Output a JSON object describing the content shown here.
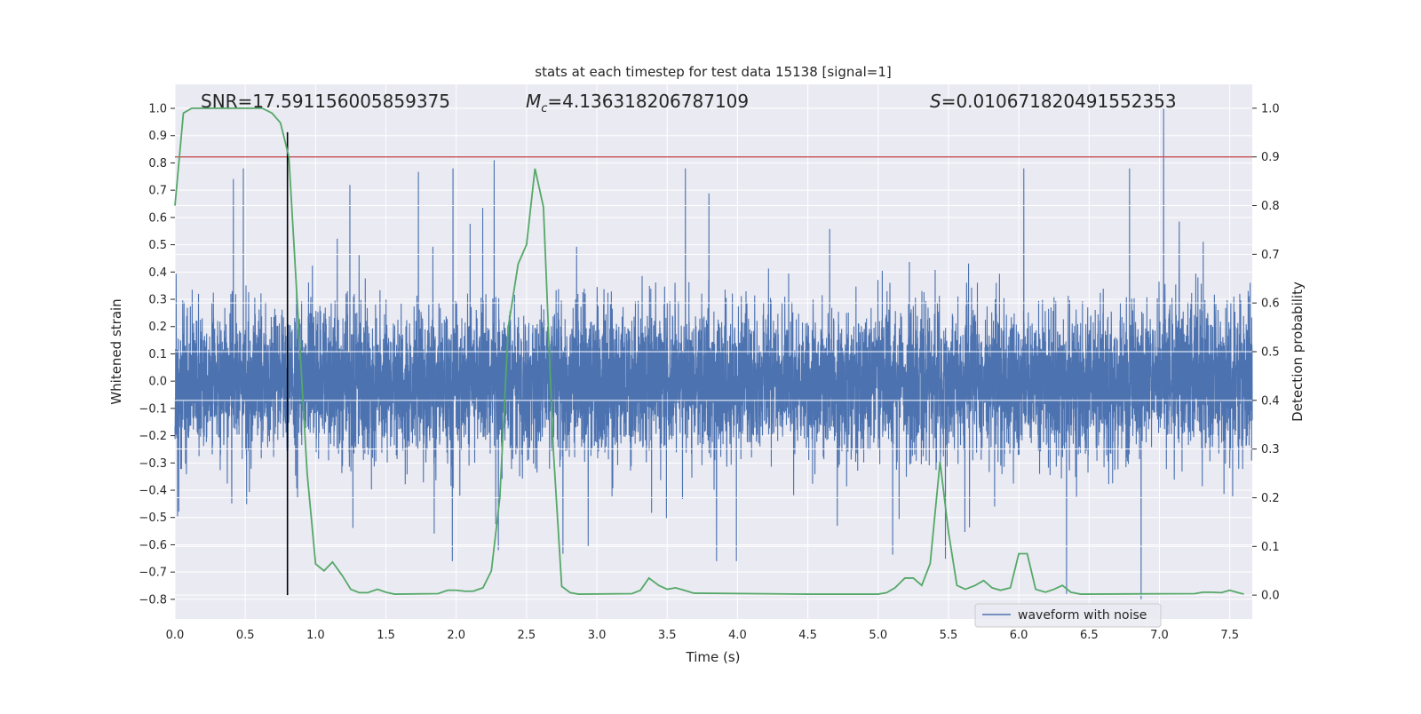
{
  "chart_data": {
    "type": "line",
    "title": "stats at each timestep for test data 15138 [signal=1]",
    "xlabel": "Time (s)",
    "ylabel_left": "Whitened strain",
    "ylabel_right": "Detection probability",
    "xlim": [
      0,
      7.66
    ],
    "ylim_left": [
      -0.872,
      1.088
    ],
    "ylim_right": [
      -0.049,
      1.049
    ],
    "x_ticks": [
      0.0,
      0.5,
      1.0,
      1.5,
      2.0,
      2.5,
      3.0,
      3.5,
      4.0,
      4.5,
      5.0,
      5.5,
      6.0,
      6.5,
      7.0,
      7.5
    ],
    "x_tick_labels": [
      "0.0",
      "0.5",
      "1.0",
      "1.5",
      "2.0",
      "2.5",
      "3.0",
      "3.5",
      "4.0",
      "4.5",
      "5.0",
      "5.5",
      "6.0",
      "6.5",
      "7.0",
      "7.5"
    ],
    "y_left_ticks": [
      1.0,
      0.9,
      0.8,
      0.7,
      0.6,
      0.5,
      0.4,
      0.3,
      0.2,
      0.1,
      0.0,
      -0.1,
      -0.2,
      -0.3,
      -0.4,
      -0.5,
      -0.6,
      -0.7,
      -0.8
    ],
    "y_left_tick_labels": [
      "1.0",
      "0.9",
      "0.8",
      "0.7",
      "0.6",
      "0.5",
      "0.4",
      "0.3",
      "0.2",
      "0.1",
      "0.0",
      "−0.1",
      "−0.2",
      "−0.3",
      "−0.4",
      "−0.5",
      "−0.6",
      "−0.7",
      "−0.8"
    ],
    "y_right_ticks": [
      1.0,
      0.9,
      0.8,
      0.7,
      0.6,
      0.5,
      0.4,
      0.3,
      0.2,
      0.1,
      0.0
    ],
    "y_right_tick_labels": [
      "1.0",
      "0.9",
      "0.8",
      "0.7",
      "0.6",
      "0.5",
      "0.4",
      "0.3",
      "0.2",
      "0.1",
      "0.0"
    ],
    "grid": true,
    "annotations": {
      "snr": "SNR=17.591156005859375",
      "mc_symbol": "M",
      "mc_sub": "c",
      "mc_value": "=4.136318206787109",
      "s_symbol": "S",
      "s_value": "=0.010671820491552353"
    },
    "legend": {
      "placement": "lower-right",
      "entries": [
        "waveform with noise"
      ]
    },
    "threshold": {
      "axis": "right",
      "value": 0.9,
      "color": "#c44e52"
    },
    "marker_time": {
      "value": 0.8,
      "color": "#000000"
    },
    "waveform": {
      "name": "waveform with noise",
      "color": "#4c72b0",
      "t_end": 7.66,
      "n_samples": 8192,
      "noise_std": 0.13,
      "spikes": [
        [
          2.27,
          0.81
        ],
        [
          7.03,
          1.0
        ],
        [
          6.87,
          -0.8
        ],
        [
          6.34,
          -0.78
        ],
        [
          0.8,
          -0.6
        ],
        [
          2.3,
          -0.62
        ]
      ]
    },
    "probability": {
      "color": "#55a868",
      "points": [
        [
          0.0,
          0.8
        ],
        [
          0.06,
          0.99
        ],
        [
          0.12,
          1.0
        ],
        [
          0.25,
          1.0
        ],
        [
          0.5,
          1.0
        ],
        [
          0.62,
          1.0
        ],
        [
          0.69,
          0.99
        ],
        [
          0.75,
          0.97
        ],
        [
          0.81,
          0.9
        ],
        [
          0.87,
          0.6
        ],
        [
          0.94,
          0.25
        ],
        [
          1.0,
          0.064
        ],
        [
          1.06,
          0.05
        ],
        [
          1.12,
          0.068
        ],
        [
          1.19,
          0.04
        ],
        [
          1.25,
          0.012
        ],
        [
          1.31,
          0.005
        ],
        [
          1.37,
          0.005
        ],
        [
          1.44,
          0.012
        ],
        [
          1.5,
          0.006
        ],
        [
          1.56,
          0.002
        ],
        [
          1.87,
          0.003
        ],
        [
          1.94,
          0.01
        ],
        [
          2.0,
          0.01
        ],
        [
          2.06,
          0.008
        ],
        [
          2.12,
          0.008
        ],
        [
          2.19,
          0.015
        ],
        [
          2.25,
          0.05
        ],
        [
          2.31,
          0.2
        ],
        [
          2.37,
          0.55
        ],
        [
          2.44,
          0.68
        ],
        [
          2.5,
          0.72
        ],
        [
          2.56,
          0.876
        ],
        [
          2.62,
          0.797
        ],
        [
          2.69,
          0.3
        ],
        [
          2.75,
          0.018
        ],
        [
          2.81,
          0.005
        ],
        [
          2.87,
          0.002
        ],
        [
          3.25,
          0.003
        ],
        [
          3.31,
          0.01
        ],
        [
          3.37,
          0.035
        ],
        [
          3.44,
          0.02
        ],
        [
          3.5,
          0.012
        ],
        [
          3.56,
          0.015
        ],
        [
          3.62,
          0.01
        ],
        [
          3.69,
          0.004
        ],
        [
          4.5,
          0.002
        ],
        [
          5.0,
          0.002
        ],
        [
          5.06,
          0.005
        ],
        [
          5.12,
          0.015
        ],
        [
          5.19,
          0.035
        ],
        [
          5.25,
          0.035
        ],
        [
          5.31,
          0.02
        ],
        [
          5.37,
          0.065
        ],
        [
          5.44,
          0.274
        ],
        [
          5.5,
          0.13
        ],
        [
          5.56,
          0.02
        ],
        [
          5.62,
          0.012
        ],
        [
          5.69,
          0.02
        ],
        [
          5.75,
          0.03
        ],
        [
          5.81,
          0.015
        ],
        [
          5.87,
          0.01
        ],
        [
          5.94,
          0.015
        ],
        [
          6.0,
          0.085
        ],
        [
          6.06,
          0.085
        ],
        [
          6.12,
          0.012
        ],
        [
          6.19,
          0.006
        ],
        [
          6.25,
          0.012
        ],
        [
          6.31,
          0.02
        ],
        [
          6.37,
          0.006
        ],
        [
          6.44,
          0.002
        ],
        [
          7.25,
          0.003
        ],
        [
          7.31,
          0.006
        ],
        [
          7.37,
          0.006
        ],
        [
          7.44,
          0.005
        ],
        [
          7.5,
          0.01
        ],
        [
          7.56,
          0.005
        ],
        [
          7.6,
          0.002
        ]
      ]
    }
  }
}
